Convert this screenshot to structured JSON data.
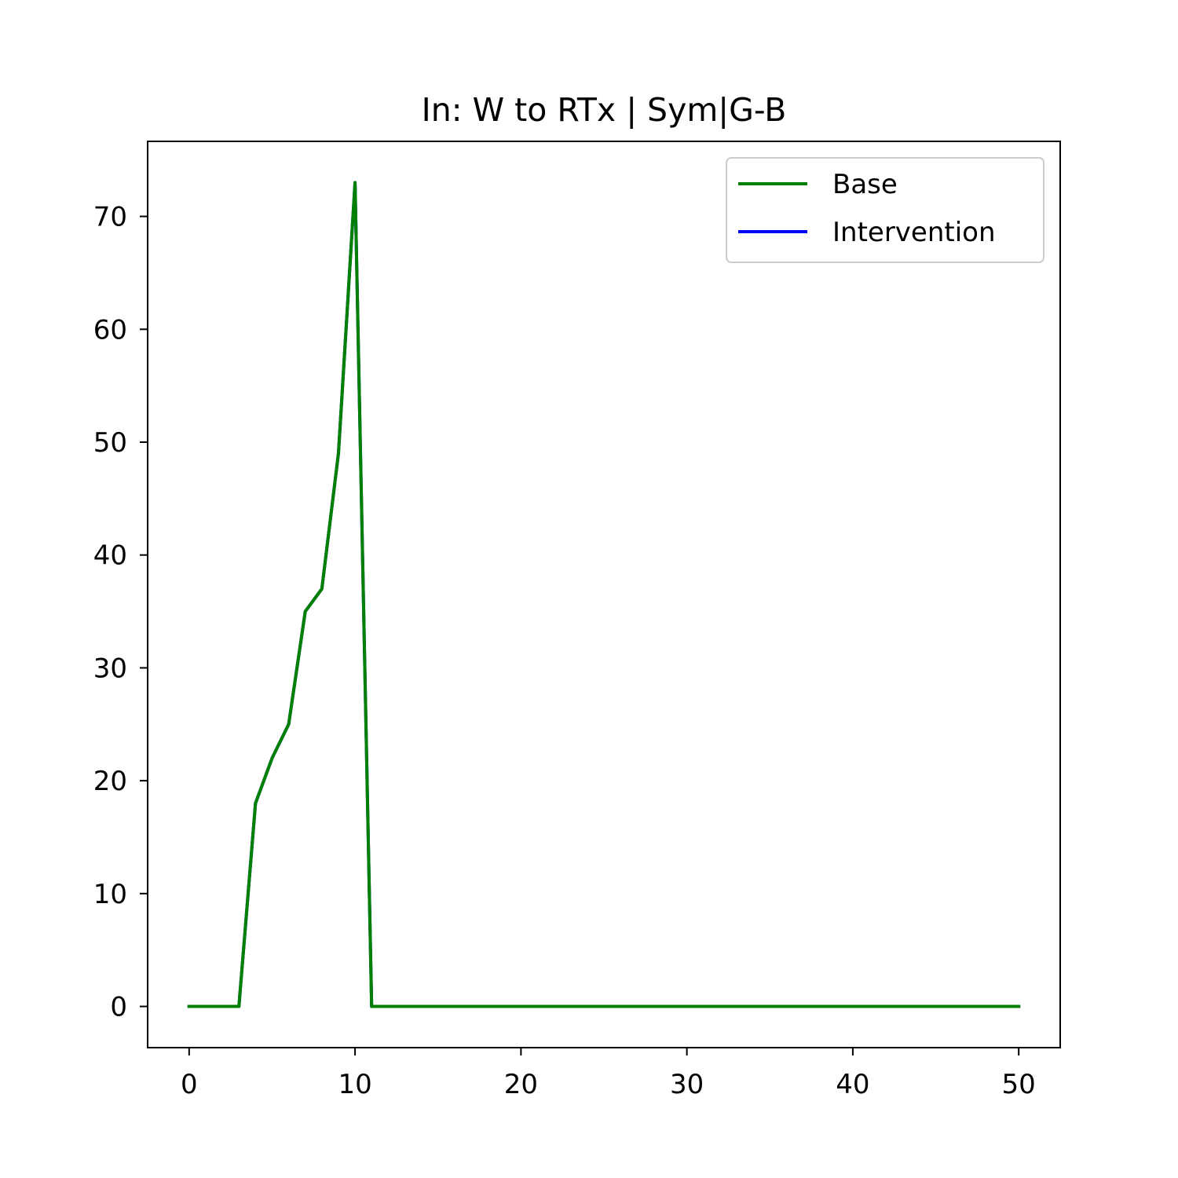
{
  "chart_data": {
    "type": "line",
    "title": "In: W to RTx | Sym|G-B",
    "xlabel": "",
    "ylabel": "",
    "xlim": [
      -2.5,
      52.5
    ],
    "ylim": [
      -3.65,
      76.65
    ],
    "xticks": [
      0,
      10,
      20,
      30,
      40,
      50
    ],
    "yticks": [
      0,
      10,
      20,
      30,
      40,
      50,
      60,
      70
    ],
    "grid": false,
    "legend_position": "upper right",
    "series": [
      {
        "name": "Base",
        "color": "#008000",
        "x": [
          0,
          1,
          2,
          3,
          4,
          5,
          6,
          7,
          8,
          9,
          10,
          11,
          12,
          13,
          14,
          15,
          16,
          17,
          18,
          19,
          20,
          21,
          22,
          23,
          24,
          25,
          26,
          27,
          28,
          29,
          30,
          31,
          32,
          33,
          34,
          35,
          36,
          37,
          38,
          39,
          40,
          41,
          42,
          43,
          44,
          45,
          46,
          47,
          48,
          49,
          50
        ],
        "values": [
          0,
          0,
          0,
          0,
          18,
          22,
          25,
          35,
          37,
          49,
          73,
          0,
          0,
          0,
          0,
          0,
          0,
          0,
          0,
          0,
          0,
          0,
          0,
          0,
          0,
          0,
          0,
          0,
          0,
          0,
          0,
          0,
          0,
          0,
          0,
          0,
          0,
          0,
          0,
          0,
          0,
          0,
          0,
          0,
          0,
          0,
          0,
          0,
          0,
          0,
          0
        ]
      },
      {
        "name": "Intervention",
        "color": "#0000ff",
        "x": [
          0,
          1,
          2,
          3,
          4,
          5,
          6,
          7,
          8,
          9,
          10,
          11,
          12,
          13,
          14,
          15,
          16,
          17,
          18,
          19,
          20,
          21,
          22,
          23,
          24,
          25,
          26,
          27,
          28,
          29,
          30,
          31,
          32,
          33,
          34,
          35,
          36,
          37,
          38,
          39,
          40,
          41,
          42,
          43,
          44,
          45,
          46,
          47,
          48,
          49,
          50
        ],
        "values": [
          0,
          0,
          0,
          0,
          18,
          22,
          25,
          35,
          37,
          49,
          73,
          0,
          0,
          0,
          0,
          0,
          0,
          0,
          0,
          0,
          0,
          0,
          0,
          0,
          0,
          0,
          0,
          0,
          0,
          0,
          0,
          0,
          0,
          0,
          0,
          0,
          0,
          0,
          0,
          0,
          0,
          0,
          0,
          0,
          0,
          0,
          0,
          0,
          0,
          0,
          0
        ]
      }
    ]
  }
}
